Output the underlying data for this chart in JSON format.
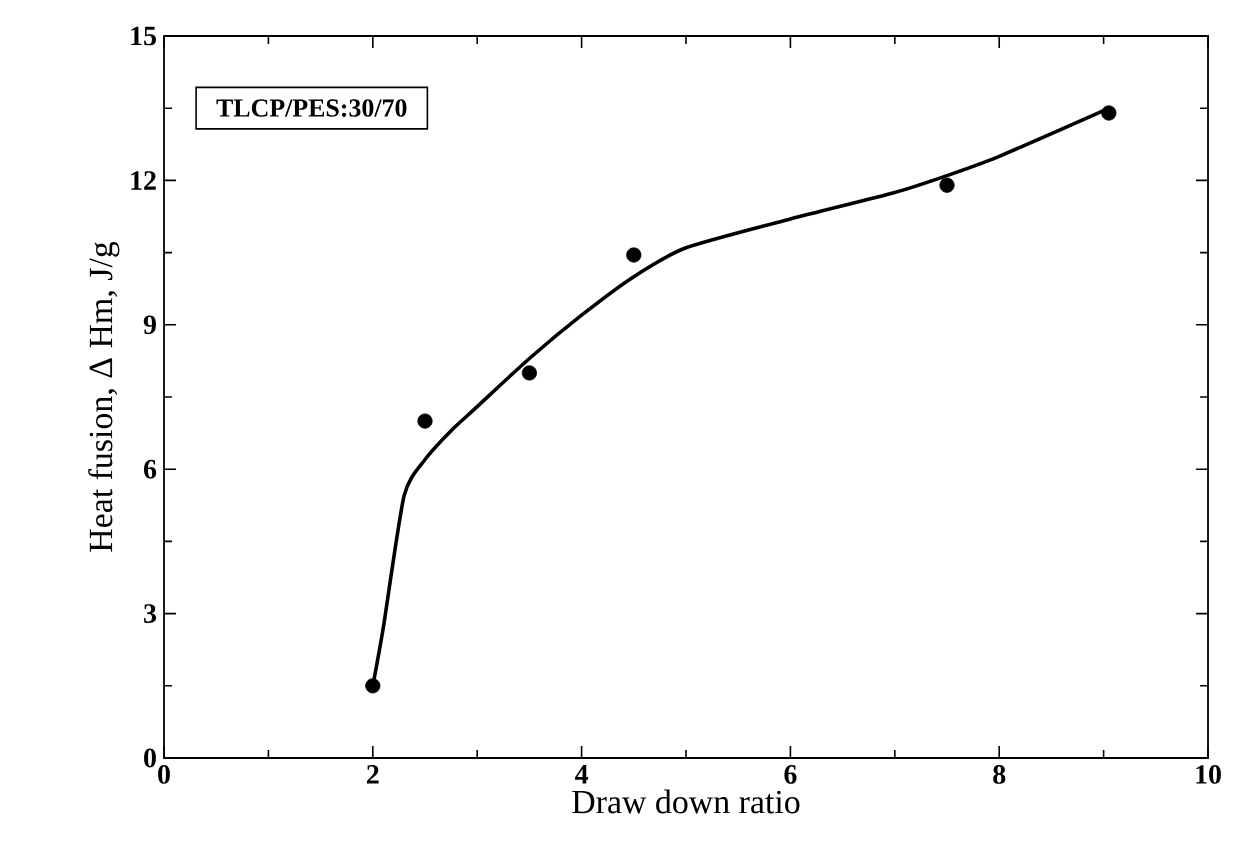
{
  "chart_data": {
    "type": "scatter",
    "xlabel": "Draw down ratio",
    "ylabel": "Heat fusion,   Δ Hm,   J/g",
    "annotations": [
      "TLCP/PES:30/70"
    ],
    "xlim": [
      0,
      10
    ],
    "ylim": [
      0,
      15
    ],
    "xticks": [
      0,
      2,
      4,
      6,
      8,
      10
    ],
    "yticks": [
      0,
      3,
      6,
      9,
      12,
      15
    ],
    "series": [
      {
        "color": "#000000",
        "marker": "circle",
        "x": [
          2,
          2.5,
          3.5,
          4.5,
          7.5,
          9.05
        ],
        "values": [
          1.5,
          7.0,
          8.0,
          10.45,
          11.9,
          13.4
        ]
      },
      {
        "type": "line",
        "color": "#000000",
        "marker": "none",
        "line_style": "solid",
        "x": [
          2,
          2.1,
          2.3,
          2.5,
          2.75,
          3,
          3.5,
          4,
          4.5,
          5,
          6,
          7,
          7.5,
          8,
          9
        ],
        "values": [
          1.5,
          2.7,
          5.45,
          6.2,
          6.8,
          7.3,
          8.3,
          9.2,
          10.0,
          10.6,
          11.2,
          11.75,
          12.1,
          12.5,
          13.45
        ]
      }
    ]
  }
}
